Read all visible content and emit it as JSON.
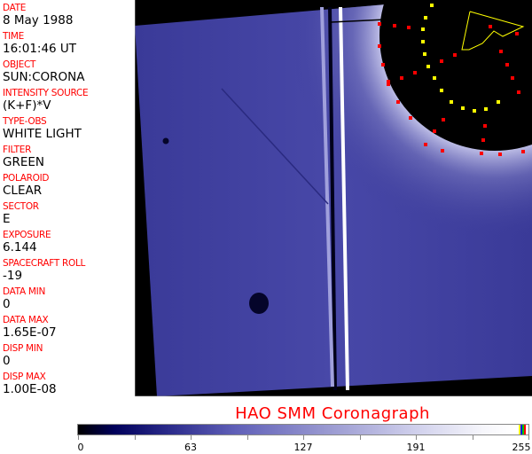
{
  "fields": [
    {
      "label": "DATE",
      "value": "8 May 1988"
    },
    {
      "label": "TIME",
      "value": "16:01:46 UT"
    },
    {
      "label": "OBJECT",
      "value": "SUN:CORONA"
    },
    {
      "label": "INTENSITY SOURCE",
      "value": "(K+F)*V"
    },
    {
      "label": "TYPE-OBS",
      "value": "WHITE LIGHT"
    },
    {
      "label": "FILTER",
      "value": "GREEN"
    },
    {
      "label": "POLAROID",
      "value": "CLEAR"
    },
    {
      "label": "SECTOR",
      "value": "E"
    },
    {
      "label": "EXPOSURE",
      "value": "6.144"
    },
    {
      "label": "SPACECRAFT ROLL",
      "value": "-19"
    },
    {
      "label": "DATA MIN",
      "value": "0"
    },
    {
      "label": "DATA MAX",
      "value": "1.65E-07"
    },
    {
      "label": "DISP MIN",
      "value": "0"
    },
    {
      "label": "DISP MAX",
      "value": "1.00E-08"
    }
  ],
  "title": "HAO  SMM Coronagraph",
  "colorbar": {
    "labels": [
      "0",
      "63",
      "127",
      "191",
      "255"
    ],
    "colors": {
      "low": "#000000",
      "mid": "#6060b8",
      "high": "#ffffff",
      "markers": [
        "#ffff00",
        "#0000ff",
        "#00c000",
        "#ff0000"
      ]
    }
  },
  "colors": {
    "label": "#ff0000",
    "corona": "#3a3a98",
    "marker_red": "#ff0000",
    "marker_yellow": "#ffff00"
  }
}
